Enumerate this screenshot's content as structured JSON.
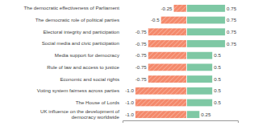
{
  "chart_data": {
    "type": "bar",
    "orientation": "horizontal",
    "categories": [
      "The democratic effectiveness of Parliament",
      "The democratic role of political parties",
      "Electoral integrity and participation",
      "Social media and civic participation",
      "Media support for democracy",
      "Rule of law and access to justice",
      "Economic and social rights",
      "Voting system fairness across parties",
      "The House of Lords",
      "UK influence on the development of\ndemocracy worldwide"
    ],
    "series": [
      {
        "color": "#F4896B",
        "values": [
          -0.25,
          -0.5,
          -0.75,
          -0.75,
          -0.75,
          -0.75,
          -0.75,
          -1.0,
          -1.0,
          -1.0
        ],
        "value_labels": [
          "-0.25",
          "-0.5",
          "-0.75",
          "-0.75",
          "-0.75",
          "-0.75",
          "-0.75",
          "-1.0",
          "-1.0",
          "-1.0"
        ]
      },
      {
        "color": "#7EC8A4",
        "values": [
          0.75,
          0.75,
          0.75,
          0.75,
          0.5,
          0.5,
          0.5,
          0.5,
          0.5,
          0.25
        ]
      }
    ],
    "xlim": [
      -1.25,
      1.0
    ],
    "data_labels": true,
    "tick_labels": "y",
    "grid": false
  }
}
